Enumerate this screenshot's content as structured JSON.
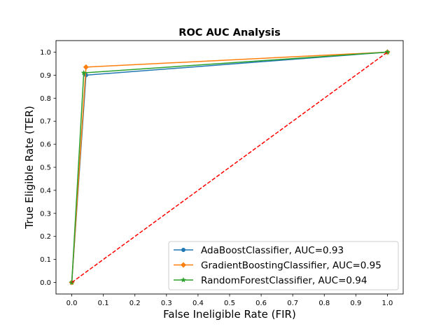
{
  "chart_data": {
    "type": "line",
    "title": "ROC AUC Analysis",
    "xlabel": "False Ineligible Rate (FIR)",
    "ylabel": "True Eligible Rate (TER)",
    "xlim": [
      -0.05,
      1.05
    ],
    "ylim": [
      -0.05,
      1.05
    ],
    "xticks": [
      0.0,
      0.1,
      0.2,
      0.3,
      0.4,
      0.5,
      0.6,
      0.7,
      0.8,
      0.9,
      1.0
    ],
    "yticks": [
      0.0,
      0.1,
      0.2,
      0.3,
      0.4,
      0.5,
      0.6,
      0.7,
      0.8,
      0.9,
      1.0
    ],
    "xtick_labels": [
      "0.0",
      "0.1",
      "0.2",
      "0.3",
      "0.4",
      "0.5",
      "0.6",
      "0.7",
      "0.8",
      "0.9",
      "1.0"
    ],
    "ytick_labels": [
      "0.0",
      "0.1",
      "0.2",
      "0.3",
      "0.4",
      "0.5",
      "0.6",
      "0.7",
      "0.8",
      "0.9",
      "1.0"
    ],
    "grid": false,
    "legend_position": "lower-right",
    "series": [
      {
        "name": "AdaBoostClassifier, AUC=0.93",
        "color": "#1f77b4",
        "marker": "circle",
        "x": [
          0.0,
          0.045,
          1.0
        ],
        "y": [
          0.0,
          0.9,
          1.0
        ]
      },
      {
        "name": "GradientBoostingClassifier, AUC=0.95",
        "color": "#ff7f0e",
        "marker": "diamond",
        "x": [
          0.0,
          0.045,
          1.0
        ],
        "y": [
          0.0,
          0.935,
          1.0
        ]
      },
      {
        "name": "RandomForestClassifier, AUC=0.94",
        "color": "#2ca02c",
        "marker": "star",
        "x": [
          0.0,
          0.038,
          1.0
        ],
        "y": [
          0.0,
          0.91,
          1.0
        ]
      }
    ],
    "reference_line": {
      "color": "#ff0000",
      "style": "dashed",
      "x": [
        0.0,
        1.0
      ],
      "y": [
        0.0,
        1.0
      ]
    }
  }
}
